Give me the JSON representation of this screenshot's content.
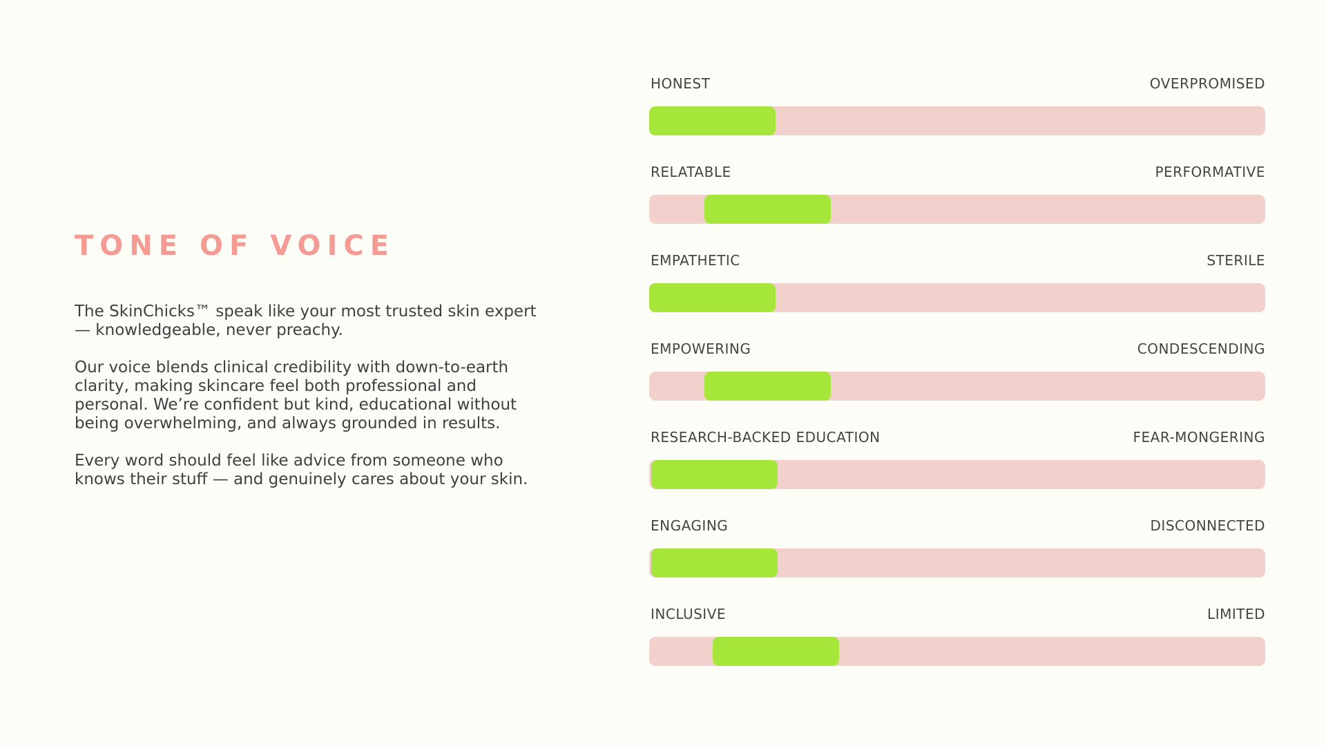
{
  "heading": "TONE OF VOICE",
  "paragraphs": [
    "The SkinChicks™ speak like your most trusted skin expert — knowledgeable, never preachy.",
    "Our voice blends clinical credibility with down-to-earth clarity, making skincare feel both professional and personal. We’re confident but kind, educational without being overwhelming, and always grounded in results.",
    "Every word should feel like advice from someone who knows their stuff — and genuinely cares about your skin."
  ],
  "scales": [
    {
      "left_label": "HONEST",
      "right_label": "OVERPROMISED",
      "position_start_pct": 0
    },
    {
      "left_label": "RELATABLE",
      "right_label": "PERFORMATIVE",
      "position_start_pct": 9
    },
    {
      "left_label": "EMPATHETIC",
      "right_label": "STERILE",
      "position_start_pct": 0
    },
    {
      "left_label": "EMPOWERING",
      "right_label": "CONDESCENDING",
      "position_start_pct": 9
    },
    {
      "left_label": "RESEARCH-BACKED EDUCATION",
      "right_label": "FEAR-MONGERING",
      "position_start_pct": 0.3
    },
    {
      "left_label": "ENGAGING",
      "right_label": "DISCONNECTED",
      "position_start_pct": 0.3
    },
    {
      "left_label": "INCLUSIVE",
      "right_label": "LIMITED",
      "position_start_pct": 10.3
    }
  ],
  "colors": {
    "accent": "#f49b94",
    "track": "#f2d1cc",
    "indicator": "#a6e63b",
    "background": "#fdfdf8"
  }
}
